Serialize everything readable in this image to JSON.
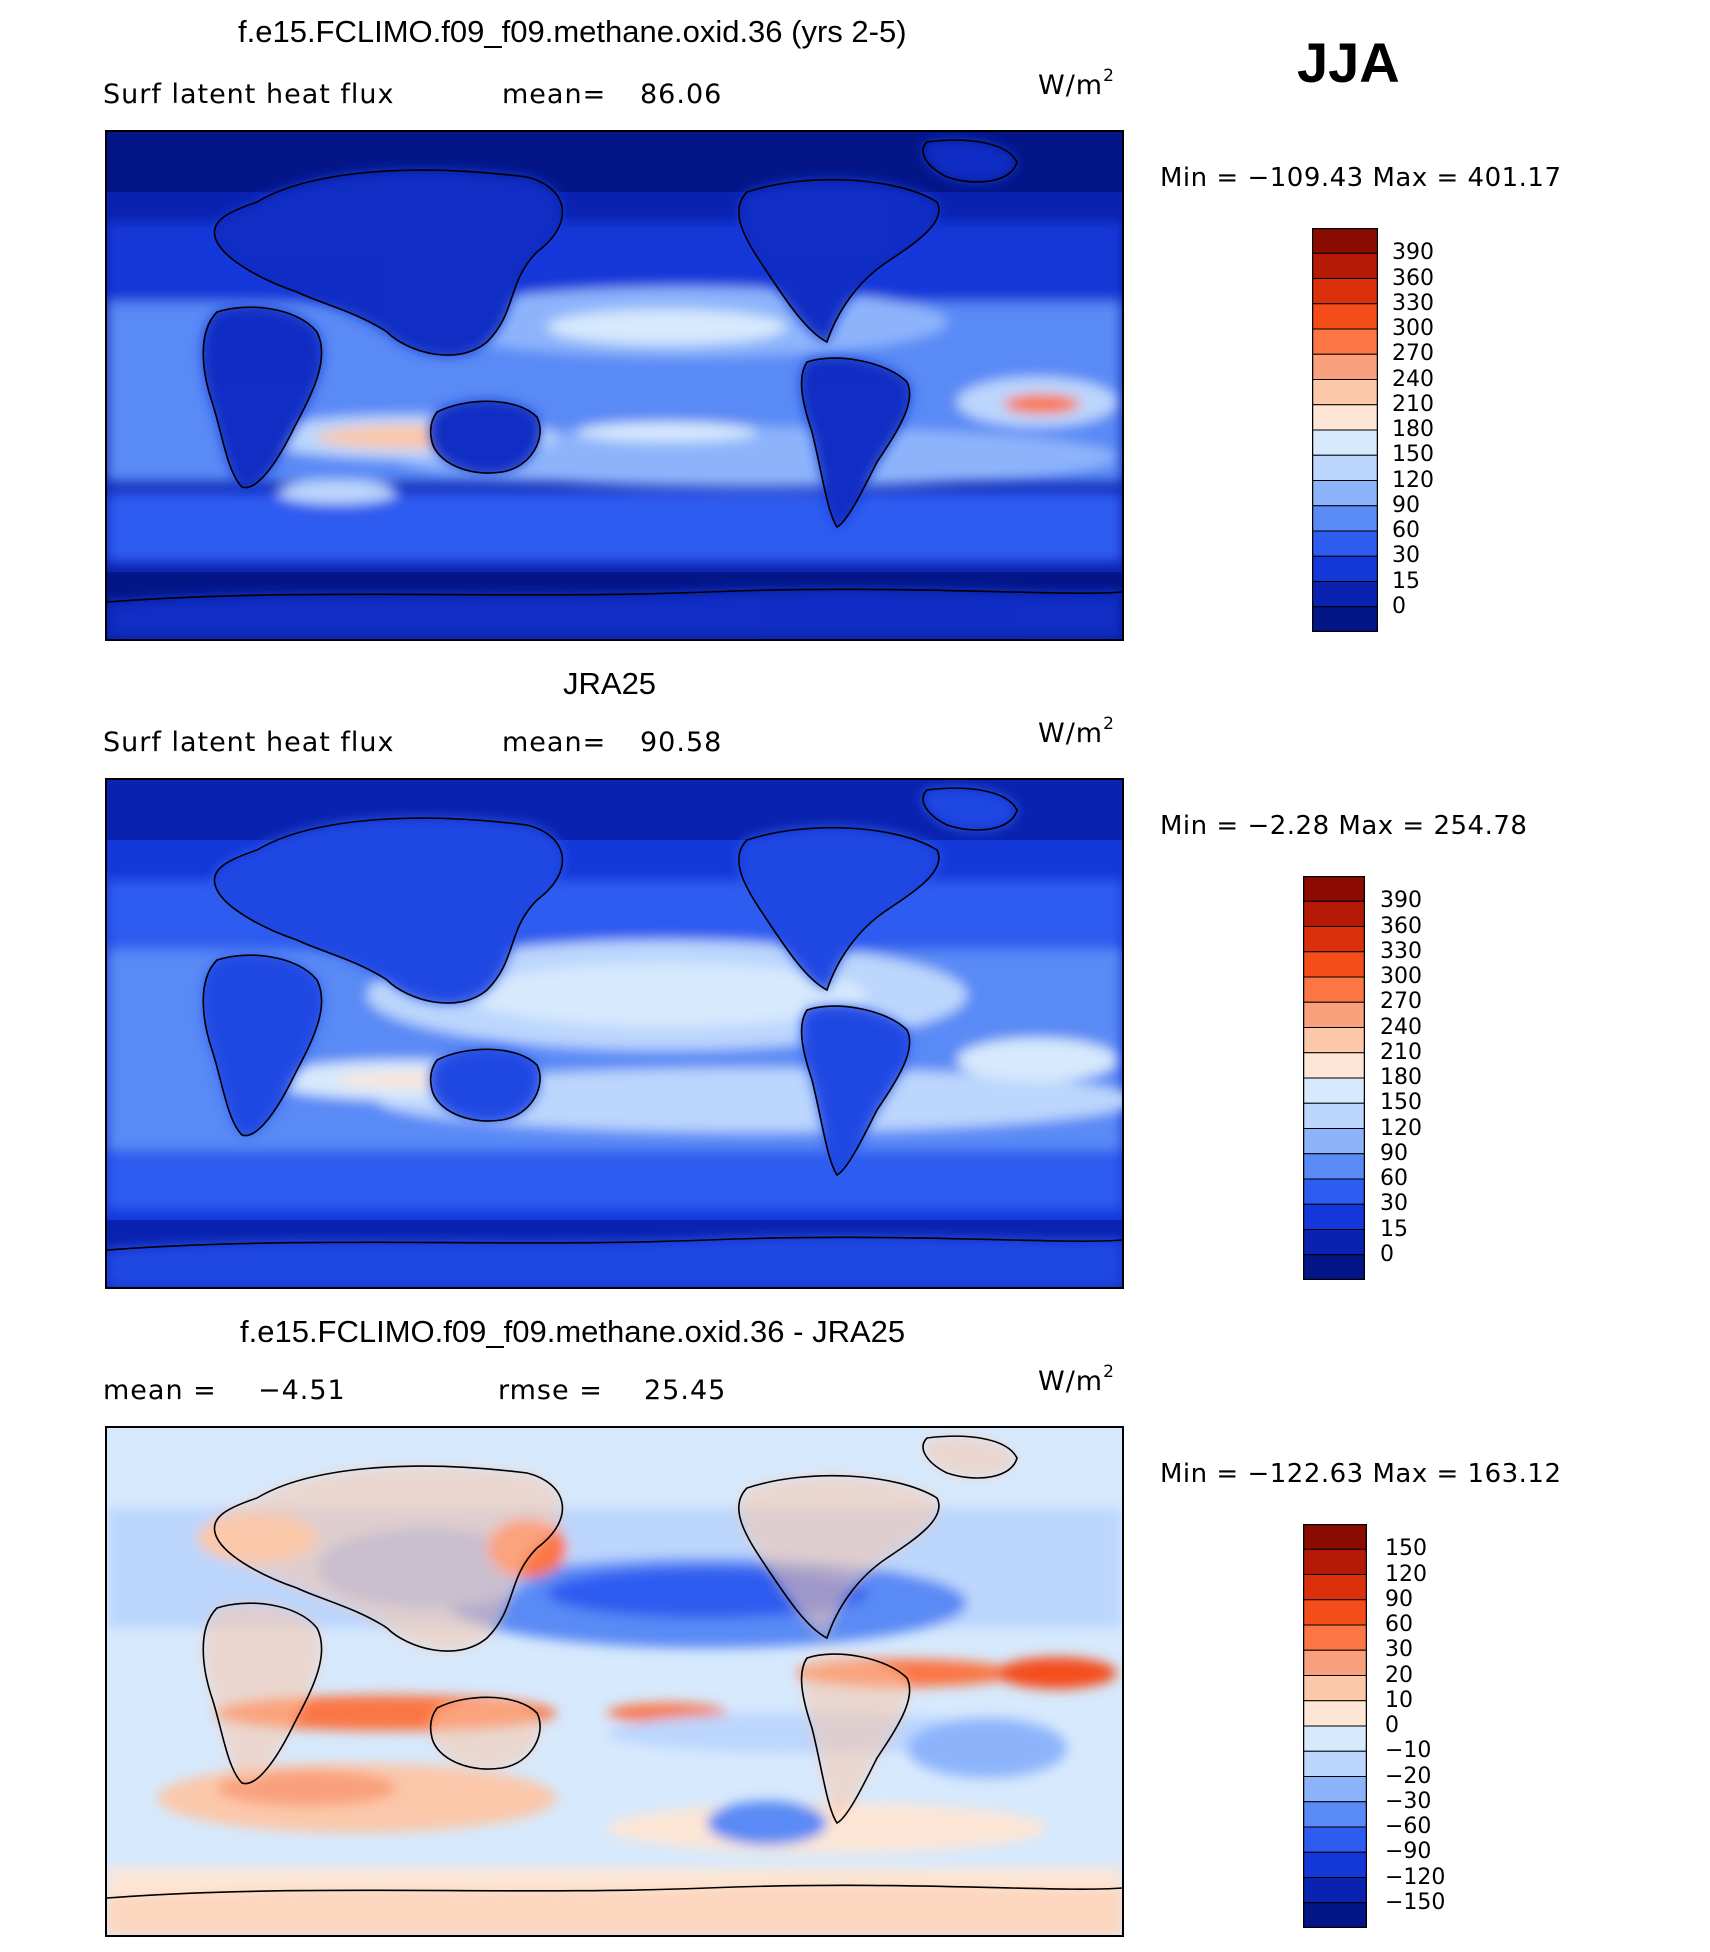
{
  "season": "JJA",
  "chart_data": [
    {
      "type": "heatmap",
      "title": "f.e15.FCLIMO.f09_f09.methane.oxid.36 (yrs 2-5)",
      "variable_label": "Surf latent heat flux",
      "stat_label": "mean=",
      "stat_value": "86.06",
      "units_base": "W/m",
      "units_exp": "2",
      "min_max": "Min = −109.43 Max = 401.17",
      "colorbar_levels": [
        "390",
        "360",
        "330",
        "300",
        "270",
        "240",
        "210",
        "180",
        "150",
        "120",
        "90",
        "60",
        "30",
        "15",
        "0"
      ],
      "colorbar_colors": [
        "#8b0a02",
        "#b51a06",
        "#dc300c",
        "#f54d1a",
        "#fb7644",
        "#f9a07c",
        "#fbc8aa",
        "#fde6d6",
        "#d6e9fd",
        "#bcd6fd",
        "#8db4fb",
        "#5a8af5",
        "#2f5cf0",
        "#1438d9",
        "#0a22b0",
        "#041587"
      ]
    },
    {
      "type": "heatmap",
      "title": "JRA25",
      "variable_label": "Surf latent heat flux",
      "stat_label": "mean=",
      "stat_value": "90.58",
      "units_base": "W/m",
      "units_exp": "2",
      "min_max": "Min =  −2.28 Max = 254.78",
      "colorbar_levels": [
        "390",
        "360",
        "330",
        "300",
        "270",
        "240",
        "210",
        "180",
        "150",
        "120",
        "90",
        "60",
        "30",
        "15",
        "0"
      ],
      "colorbar_colors": [
        "#8b0a02",
        "#b51a06",
        "#dc300c",
        "#f54d1a",
        "#fb7644",
        "#f9a07c",
        "#fbc8aa",
        "#fde6d6",
        "#d6e9fd",
        "#bcd6fd",
        "#8db4fb",
        "#5a8af5",
        "#2f5cf0",
        "#1438d9",
        "#0a22b0",
        "#041587"
      ]
    },
    {
      "type": "heatmap",
      "title": "f.e15.FCLIMO.f09_f09.methane.oxid.36 - JRA25",
      "stat_label": "mean =",
      "stat_value": "−4.51",
      "stat2_label": "rmse =",
      "stat2_value": "25.45",
      "units_base": "W/m",
      "units_exp": "2",
      "min_max": "Min = −122.63 Max = 163.12",
      "colorbar_levels": [
        "150",
        "120",
        "90",
        "60",
        "30",
        "20",
        "10",
        "0",
        "−10",
        "−20",
        "−30",
        "−60",
        "−90",
        "−120",
        "−150"
      ],
      "colorbar_colors": [
        "#8b0a02",
        "#b51a06",
        "#dc300c",
        "#f54d1a",
        "#fb7644",
        "#f9a07c",
        "#fbc8aa",
        "#fde6d6",
        "#d6e9fd",
        "#bcd6fd",
        "#8db4fb",
        "#5a8af5",
        "#2f5cf0",
        "#1438d9",
        "#0a22b0",
        "#041587"
      ]
    }
  ]
}
